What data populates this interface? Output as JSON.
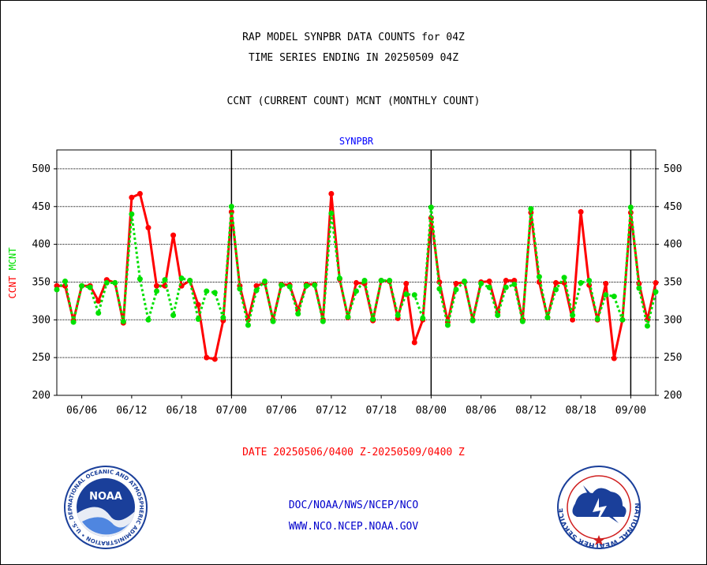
{
  "header": {
    "title_line1": "RAP MODEL SYNPBR DATA COUNTS for 04Z",
    "title_line2": "TIME SERIES ENDING IN 20250509 04Z",
    "subtitle": "CCNT (CURRENT COUNT) MCNT (MONTHLY COUNT)"
  },
  "footer": {
    "date_range": "DATE 20250506/0400 Z-20250509/0400 Z",
    "org_line": "DOC/NOAA/NWS/NCEP/NCO",
    "website": "WWW.NCO.NCEP.NOAA.GOV"
  },
  "logos": {
    "noaa_text": "NOAA",
    "noaa_ring": "NATIONAL OCEANIC AND ATMOSPHERIC ADMINISTRATION • U.S. DEPARTMENT OF COMMERCE •",
    "nws_ring": "NATIONAL WEATHER SERVICE"
  },
  "colors": {
    "ccnt": "#ff0000",
    "mcnt": "#00e000",
    "plot_title": "#0000ff",
    "footer_red": "#ff0000",
    "footer_blue": "#0000cc"
  },
  "chart_data": {
    "type": "line",
    "title": "SYNPBR",
    "ylabel_parts": [
      "CCNT",
      "MCNT"
    ],
    "ylim": [
      200,
      525
    ],
    "yticks": [
      200,
      250,
      300,
      350,
      400,
      450,
      500
    ],
    "xlim": [
      0,
      72
    ],
    "x_tick_labels": [
      {
        "x": 3,
        "label": "06/06"
      },
      {
        "x": 9,
        "label": "06/12"
      },
      {
        "x": 15,
        "label": "06/18"
      },
      {
        "x": 21,
        "label": "07/00"
      },
      {
        "x": 27,
        "label": "07/06"
      },
      {
        "x": 33,
        "label": "07/12"
      },
      {
        "x": 39,
        "label": "07/18"
      },
      {
        "x": 45,
        "label": "08/00"
      },
      {
        "x": 51,
        "label": "08/06"
      },
      {
        "x": 57,
        "label": "08/12"
      },
      {
        "x": 63,
        "label": "08/18"
      },
      {
        "x": 69,
        "label": "09/00"
      }
    ],
    "day_boundaries": [
      21,
      45,
      69
    ],
    "grid_y": true,
    "series": [
      {
        "name": "CCNT",
        "style": "solid",
        "values": [
          345,
          345,
          299,
          345,
          345,
          325,
          353,
          349,
          296,
          462,
          467,
          422,
          345,
          345,
          412,
          345,
          352,
          320,
          250,
          248,
          299,
          443,
          345,
          300,
          345,
          349,
          300,
          347,
          346,
          313,
          347,
          347,
          300,
          467,
          354,
          303,
          349,
          348,
          299,
          352,
          351,
          302,
          348,
          270,
          300,
          435,
          350,
          297,
          348,
          350,
          300,
          350,
          351,
          310,
          352,
          352,
          300,
          442,
          350,
          303,
          349,
          349,
          300,
          443,
          346,
          300,
          348,
          249,
          300,
          442,
          348,
          300,
          349
        ]
      },
      {
        "name": "MCNT",
        "style": "dotted",
        "values": [
          340,
          351,
          297,
          345,
          343,
          309,
          349,
          349,
          298,
          440,
          354,
          300,
          338,
          353,
          306,
          355,
          352,
          301,
          338,
          336,
          303,
          450,
          341,
          293,
          339,
          351,
          298,
          346,
          344,
          308,
          345,
          346,
          298,
          441,
          355,
          304,
          338,
          352,
          301,
          352,
          352,
          306,
          334,
          333,
          302,
          449,
          341,
          293,
          340,
          351,
          299,
          348,
          343,
          306,
          343,
          347,
          298,
          447,
          357,
          303,
          340,
          356,
          306,
          349,
          352,
          301,
          333,
          331,
          300,
          449,
          342,
          292,
          337
        ]
      }
    ]
  }
}
